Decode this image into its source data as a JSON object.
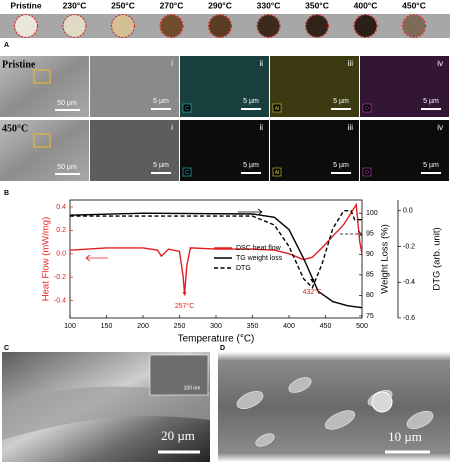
{
  "panel_a": {
    "letter": "A",
    "samples": [
      {
        "label": "Pristine",
        "color": "#ebe6da"
      },
      {
        "label": "230°C",
        "color": "#e0d9c4"
      },
      {
        "label": "250°C",
        "color": "#d4c094"
      },
      {
        "label": "270°C",
        "color": "#6e4c2c"
      },
      {
        "label": "290°C",
        "color": "#5a3c22"
      },
      {
        "label": "330°C",
        "color": "#3c2b1d"
      },
      {
        "label": "350°C",
        "color": "#30241a"
      },
      {
        "label": "400°C",
        "color": "#2a2018"
      },
      {
        "label": "450°C",
        "color": "#7d6b58"
      }
    ],
    "rows": [
      {
        "label": "Pristine",
        "overview_scale": "50 µm",
        "scale": "5 µm",
        "numerals": [
          "i",
          "ii",
          "iii",
          "iv"
        ],
        "elements": [
          "C",
          "Al",
          "O"
        ]
      },
      {
        "label": "450°C",
        "overview_scale": "50 µm",
        "scale": "5 µm",
        "numerals": [
          "i",
          "ii",
          "iii",
          "iv"
        ],
        "elements": [
          "C",
          "Al",
          "O"
        ]
      }
    ]
  },
  "chart_data": {
    "type": "line",
    "letter": "B",
    "x_label": "Temperature (°C)",
    "y_label": "Heat Flow (mW/mg)",
    "y2_label": "Weight Loss (%)",
    "y3_label": "DTG (arb. unit)",
    "xlim": [
      100,
      500
    ],
    "xticks": [
      100,
      150,
      200,
      250,
      300,
      350,
      400,
      450,
      500
    ],
    "ylim": [
      -0.55,
      0.46
    ],
    "yticks": [
      -0.4,
      -0.2,
      {
        "value": 0,
        "label": "0.0"
      },
      0.2,
      0.4
    ],
    "y2lim": [
      74.5,
      103.2
    ],
    "y2ticks": [
      75,
      80,
      85,
      90,
      95,
      100
    ],
    "y3lim": [
      -0.6,
      0.06
    ],
    "y3ticks": [
      -0.6,
      -0.4,
      -0.2,
      {
        "value": 0,
        "label": "0.0"
      }
    ],
    "series": [
      {
        "name": "DSC heat flow",
        "color": "#e02020",
        "axis": "y",
        "x": [
          100,
          150,
          200,
          220,
          225,
          235,
          250,
          255,
          257,
          260,
          265,
          300,
          350,
          380,
          400,
          420,
          432,
          445,
          460,
          475,
          485,
          492,
          497,
          500
        ],
        "values": [
          0.03,
          0.05,
          0.05,
          0.03,
          -0.02,
          0.04,
          0.02,
          -0.2,
          -0.35,
          -0.1,
          0.05,
          0.04,
          0.04,
          0.03,
          0.0,
          -0.05,
          -0.03,
          0.05,
          0.15,
          0.25,
          0.35,
          0.42,
          0.1,
          0.0
        ]
      },
      {
        "name": "TG weight loss",
        "color": "#000000",
        "axis": "y2",
        "x": [
          100,
          200,
          350,
          380,
          400,
          420,
          440,
          460,
          480,
          500
        ],
        "values": [
          99.5,
          100,
          99.8,
          99,
          96,
          89,
          81,
          78.5,
          77.5,
          77
        ]
      },
      {
        "name": "DTG",
        "color": "#000000",
        "axis": "y3",
        "dashed": true,
        "x": [
          100,
          350,
          380,
          400,
          420,
          432,
          445,
          460,
          475,
          485,
          490,
          500
        ],
        "values": [
          -0.03,
          -0.03,
          -0.08,
          -0.2,
          -0.38,
          -0.43,
          -0.3,
          -0.1,
          0.0,
          0.0,
          -0.05,
          -0.05
        ]
      }
    ],
    "annotations": [
      "257°C",
      "432°C"
    ]
  },
  "panel_c": {
    "letter": "C",
    "scale": "20 µm",
    "inset_scale": "100 nm"
  },
  "panel_d": {
    "letter": "D",
    "scale": "10 µm"
  }
}
